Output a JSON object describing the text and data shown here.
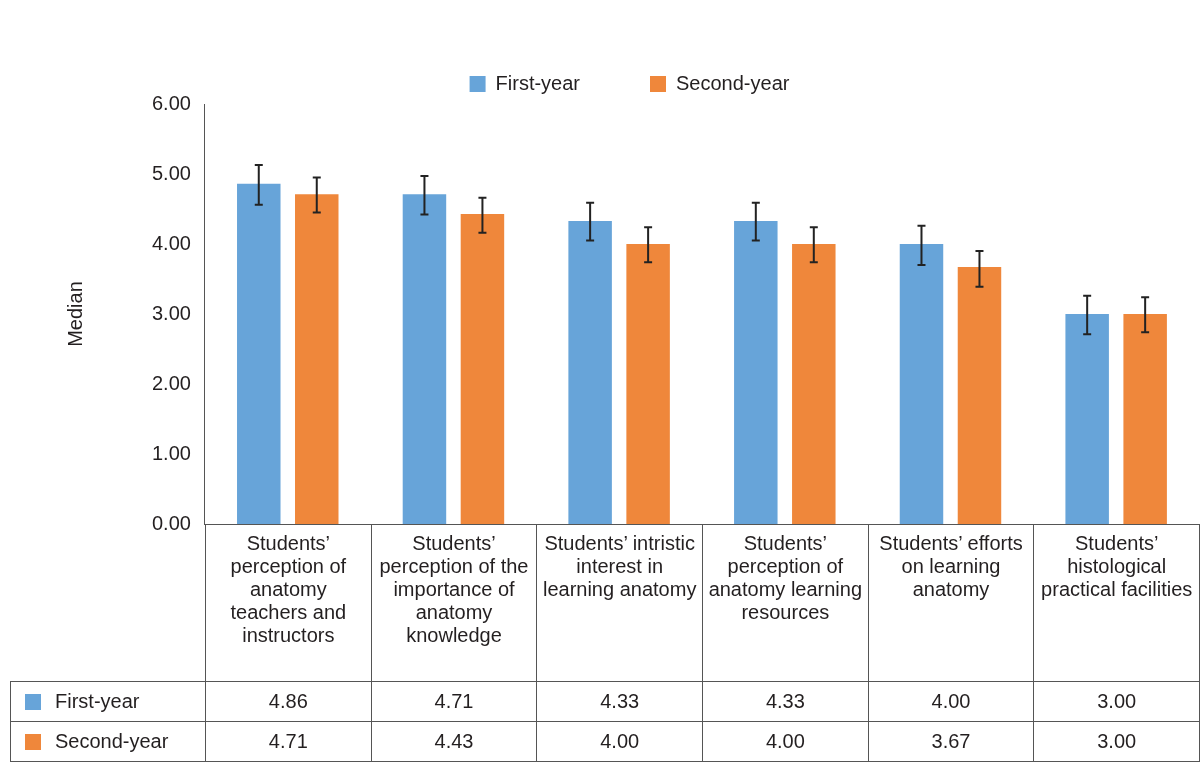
{
  "chart_data": {
    "type": "bar",
    "ylabel": "Median",
    "categories": [
      "Students’ perception of anatomy teachers and instructors",
      "Students’ perception of the importance of anatomy knowledge",
      "Students’ intristic interest in learning anatomy",
      "Students’ perception of anatomy learning resources",
      "Students’ efforts on learning anatomy",
      "Students’ histological practical facilities"
    ],
    "series": [
      {
        "name": "First-year",
        "color": "#67a4d9",
        "values": [
          4.86,
          4.71,
          4.33,
          4.33,
          4.0,
          3.0
        ],
        "value_labels": [
          "4.86",
          "4.71",
          "4.33",
          "4.33",
          "4.00",
          "3.00"
        ],
        "errors": [
          [
            4.56,
            5.13
          ],
          [
            4.42,
            4.97
          ],
          [
            4.05,
            4.59
          ],
          [
            4.05,
            4.59
          ],
          [
            3.7,
            4.26
          ],
          [
            2.71,
            3.26
          ]
        ]
      },
      {
        "name": "Second-year",
        "color": "#ef873b",
        "values": [
          4.71,
          4.43,
          4.0,
          4.0,
          3.67,
          3.0
        ],
        "value_labels": [
          "4.71",
          "4.43",
          "4.00",
          "4.00",
          "3.67",
          "3.00"
        ],
        "errors": [
          [
            4.45,
            4.95
          ],
          [
            4.16,
            4.66
          ],
          [
            3.74,
            4.24
          ],
          [
            3.74,
            4.24
          ],
          [
            3.39,
            3.9
          ],
          [
            2.74,
            3.24
          ]
        ]
      }
    ],
    "ylim": [
      0,
      6
    ],
    "yticks": [
      {
        "value": 0,
        "label": "0.00"
      },
      {
        "value": 1,
        "label": "1.00"
      },
      {
        "value": 2,
        "label": "2.00"
      },
      {
        "value": 3,
        "label": "3.00"
      },
      {
        "value": 4,
        "label": "4.00"
      },
      {
        "value": 5,
        "label": "5.00"
      },
      {
        "value": 6,
        "label": "6.00"
      }
    ],
    "grid": false,
    "legend": "top"
  }
}
